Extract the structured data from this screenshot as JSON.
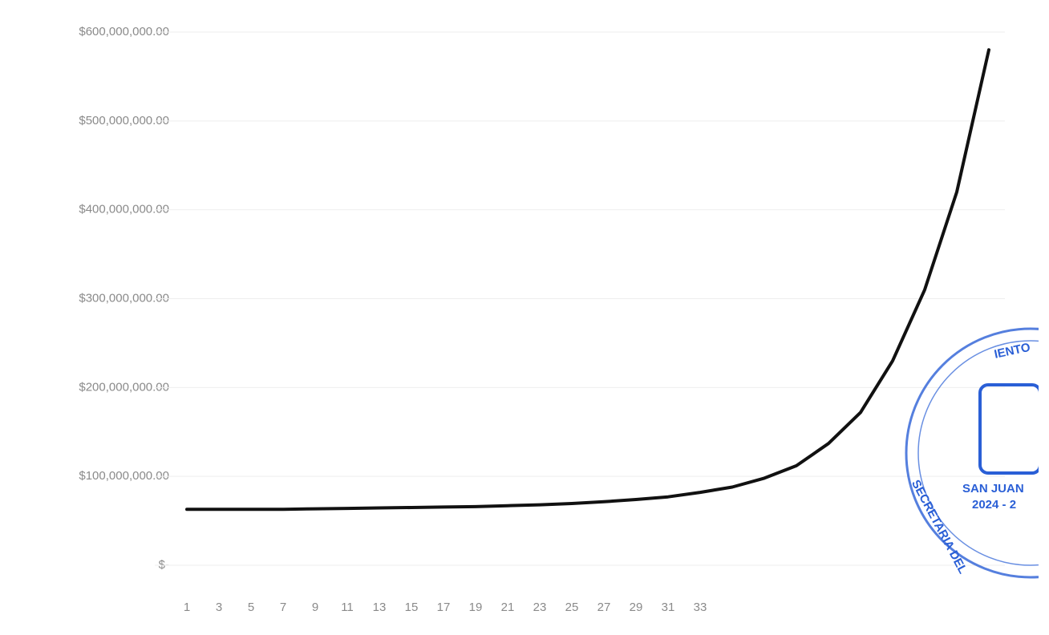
{
  "chart_data": {
    "type": "line",
    "x": [
      1,
      3,
      5,
      7,
      9,
      11,
      13,
      15,
      17,
      19,
      21,
      23,
      25,
      27,
      29,
      31,
      33,
      35,
      37,
      39,
      41,
      43,
      45,
      47,
      49,
      51
    ],
    "series": [
      {
        "color": "#111111",
        "values": [
          63000000,
          63000000,
          63000000,
          63000000,
          63500000,
          64000000,
          64500000,
          65000000,
          65500000,
          66000000,
          67000000,
          68000000,
          69500000,
          71500000,
          74000000,
          77000000,
          82000000,
          88000000,
          98000000,
          112000000,
          137000000,
          172000000,
          230000000,
          310000000,
          420000000,
          580000000
        ]
      }
    ],
    "xlim": [
      0,
      52
    ],
    "xticks": [
      1,
      3,
      5,
      7,
      9,
      11,
      13,
      15,
      17,
      19,
      21,
      23,
      25,
      27,
      29,
      31,
      33
    ],
    "ylim": [
      0,
      600000000
    ],
    "yticks": [
      {
        "value": 0,
        "label": "$-"
      },
      {
        "value": 100000000,
        "label": "$100,000,000.00"
      },
      {
        "value": 200000000,
        "label": "$200,000,000.00"
      },
      {
        "value": 300000000,
        "label": "$300,000,000.00"
      },
      {
        "value": 400000000,
        "label": "$400,000,000.00"
      },
      {
        "value": 500000000,
        "label": "$500,000,000.00"
      },
      {
        "value": 600000000,
        "label": "$600,000,000.00"
      }
    ],
    "grid": true
  },
  "stamp": {
    "top": "IENTO",
    "bottom": "SECRETARIA DEL",
    "city": "SAN JUAN",
    "years": "2024 - 2"
  }
}
